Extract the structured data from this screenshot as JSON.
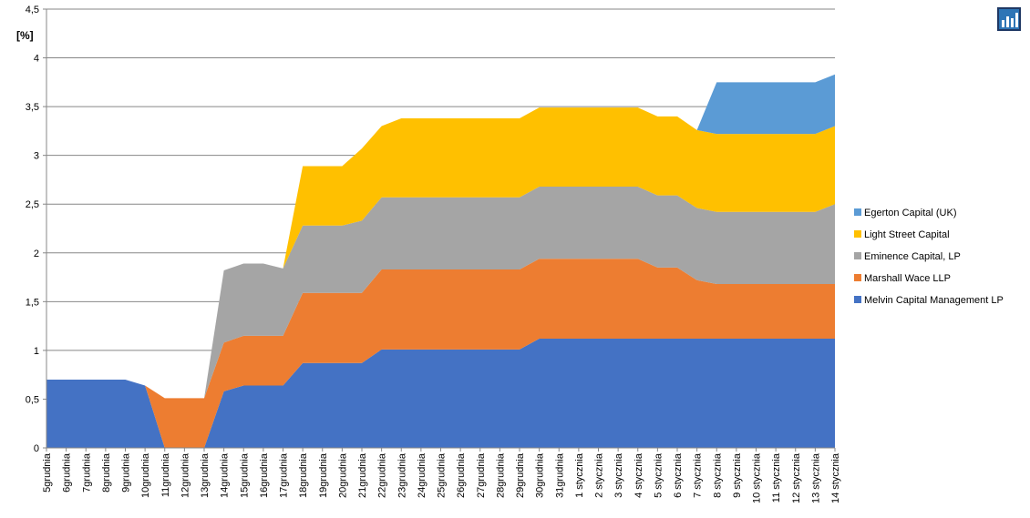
{
  "chart_data": {
    "type": "area",
    "stacked": true,
    "ylabel": "[%]",
    "ylim": [
      0,
      4.5
    ],
    "yticks": [
      "0",
      "0,5",
      "1",
      "1,5",
      "2",
      "2,5",
      "3",
      "3,5",
      "4",
      "4,5"
    ],
    "grid": true,
    "legend_position": "right",
    "categories": [
      "5grudnia",
      "6grudnia",
      "7grudnia",
      "8grudnia",
      "9grudnia",
      "10grudnia",
      "11grudnia",
      "12grudnia",
      "13grudnia",
      "14grudnia",
      "15grudnia",
      "16grudnia",
      "17grudnia",
      "18grudnia",
      "19grudnia",
      "20grudnia",
      "21grudnia",
      "22grudnia",
      "23grudnia",
      "24grudnia",
      "25grudnia",
      "26grudnia",
      "27grudnia",
      "28grudnia",
      "29grudnia",
      "30grudnia",
      "31grudnia",
      "1 stycznia",
      "2 stycznia",
      "3 stycznia",
      "4 stycznia",
      "5 stycznia",
      "6 stycznia",
      "7 stycznia",
      "8 stycznia",
      "9 stycznia",
      "10 stycznia",
      "11 stycznia",
      "12 stycznia",
      "13 stycznia",
      "14 stycznia"
    ],
    "series": [
      {
        "name": "Melvin Capital  Management  LP",
        "color": "#4472C4",
        "values": [
          0.7,
          0.7,
          0.7,
          0.7,
          0.7,
          0.64,
          0.0,
          0.0,
          0.0,
          0.58,
          0.64,
          0.64,
          0.64,
          0.87,
          0.87,
          0.87,
          0.87,
          1.01,
          1.01,
          1.01,
          1.01,
          1.01,
          1.01,
          1.01,
          1.01,
          1.12,
          1.12,
          1.12,
          1.12,
          1.12,
          1.12,
          1.12,
          1.12,
          1.12,
          1.12,
          1.12,
          1.12,
          1.12,
          1.12,
          1.12,
          1.12
        ]
      },
      {
        "name": "Marshall Wace LLP",
        "color": "#ED7D31",
        "values": [
          0,
          0,
          0,
          0,
          0,
          0,
          0.51,
          0.51,
          0.51,
          0.5,
          0.51,
          0.51,
          0.51,
          0.72,
          0.72,
          0.72,
          0.72,
          0.82,
          0.82,
          0.82,
          0.82,
          0.82,
          0.82,
          0.82,
          0.82,
          0.82,
          0.82,
          0.82,
          0.82,
          0.82,
          0.82,
          0.73,
          0.73,
          0.6,
          0.56,
          0.56,
          0.56,
          0.56,
          0.56,
          0.56,
          0.56
        ]
      },
      {
        "name": "Eminence Capital,  LP",
        "color": "#A5A5A5",
        "values": [
          0,
          0,
          0,
          0,
          0,
          0,
          0,
          0,
          0,
          0.74,
          0.74,
          0.74,
          0.69,
          0.69,
          0.69,
          0.69,
          0.74,
          0.74,
          0.74,
          0.74,
          0.74,
          0.74,
          0.74,
          0.74,
          0.74,
          0.74,
          0.74,
          0.74,
          0.74,
          0.74,
          0.74,
          0.74,
          0.74,
          0.74,
          0.74,
          0.74,
          0.74,
          0.74,
          0.74,
          0.74,
          0.82
        ]
      },
      {
        "name": "Light Street Capital",
        "color": "#FFC000",
        "values": [
          0,
          0,
          0,
          0,
          0,
          0,
          0,
          0,
          0,
          0,
          0,
          0,
          0,
          0.61,
          0.61,
          0.61,
          0.74,
          0.73,
          0.81,
          0.81,
          0.81,
          0.81,
          0.81,
          0.81,
          0.81,
          0.81,
          0.81,
          0.81,
          0.81,
          0.81,
          0.81,
          0.81,
          0.81,
          0.8,
          0.8,
          0.8,
          0.8,
          0.8,
          0.8,
          0.8,
          0.8
        ]
      },
      {
        "name": "Egerton Capital (UK)",
        "color": "#5B9BD5",
        "values": [
          0,
          0,
          0,
          0,
          0,
          0,
          0,
          0,
          0,
          0,
          0,
          0,
          0,
          0,
          0,
          0,
          0,
          0,
          0,
          0,
          0,
          0,
          0,
          0,
          0,
          0,
          0,
          0,
          0,
          0,
          0,
          0,
          0,
          0,
          0.53,
          0.53,
          0.53,
          0.53,
          0.53,
          0.53,
          0.53
        ]
      }
    ]
  },
  "logo": {
    "icon": "bar-chart-logo-icon",
    "colors": [
      "#1F3864",
      "#2E75B6",
      "#FFFFFF"
    ]
  }
}
